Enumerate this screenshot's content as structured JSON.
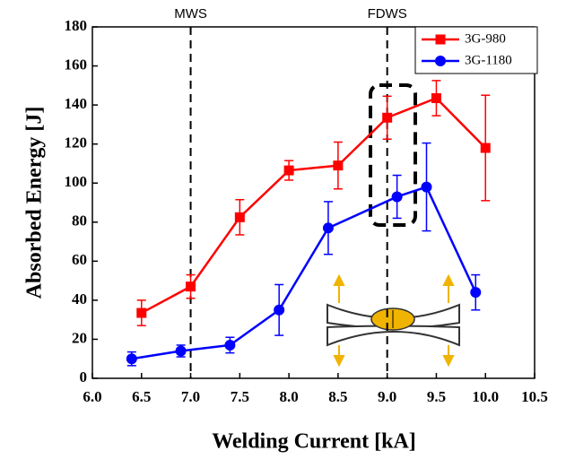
{
  "chart_data": {
    "type": "line",
    "x_label": "Welding Current [kA]",
    "y_label": "Absorbed Energy  [J]",
    "xlim": [
      6.0,
      10.5
    ],
    "ylim": [
      0,
      180
    ],
    "xticks": [
      {
        "value": 6.0,
        "label": "6.0"
      },
      {
        "value": 6.5,
        "label": "6.5"
      },
      {
        "value": 7.0,
        "label": "7.0"
      },
      {
        "value": 7.5,
        "label": "7.5"
      },
      {
        "value": 8.0,
        "label": "8.0"
      },
      {
        "value": 8.5,
        "label": "8.5"
      },
      {
        "value": 9.0,
        "label": "9.0"
      },
      {
        "value": 9.5,
        "label": "9.5"
      },
      {
        "value": 10.0,
        "label": "10.0"
      },
      {
        "value": 10.5,
        "label": "10.5"
      }
    ],
    "yticks": [
      0,
      20,
      40,
      60,
      80,
      100,
      120,
      140,
      160,
      180
    ],
    "annotations": [
      {
        "x": 7.0,
        "label": "MWS"
      },
      {
        "x": 9.0,
        "label": "FDWS"
      }
    ],
    "legend": "upper right",
    "series": [
      {
        "name": "3G-980",
        "color": "#ff0000",
        "marker": "square",
        "x": [
          6.5,
          7.0,
          7.5,
          8.0,
          8.5,
          9.0,
          9.5,
          10.0
        ],
        "values": [
          33.5,
          47,
          82.5,
          106.5,
          109,
          133.5,
          143.5,
          118
        ],
        "errors": [
          6.5,
          6,
          9,
          5,
          12,
          11,
          9,
          27
        ]
      },
      {
        "name": "3G-1180",
        "color": "#0000ff",
        "marker": "circle",
        "x": [
          6.4,
          6.9,
          7.4,
          7.9,
          8.4,
          9.1,
          9.4,
          9.9
        ],
        "values": [
          10,
          14,
          17,
          35,
          77,
          93,
          98,
          44
        ],
        "errors": [
          3.5,
          3,
          4,
          13,
          13.5,
          11,
          22.5,
          9
        ]
      }
    ]
  }
}
